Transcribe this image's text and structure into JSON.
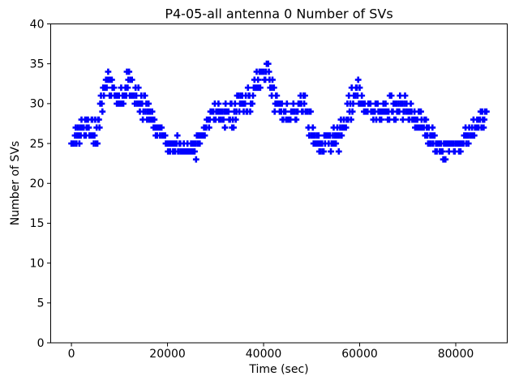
{
  "figure": {
    "background_color": "#ffffff",
    "text_color": "#000000",
    "frame_color": "#000000"
  },
  "chart_data": {
    "type": "scatter",
    "title": "P4-05-all antenna 0 Number of SVs",
    "xlabel": "Time (sec)",
    "ylabel": "Number of SVs",
    "xlim": [
      -4320,
      90720
    ],
    "ylim": [
      0,
      40
    ],
    "x_ticks": [
      0,
      20000,
      40000,
      60000,
      80000
    ],
    "y_ticks": [
      0,
      5,
      10,
      15,
      20,
      25,
      30,
      35,
      40
    ],
    "grid": false,
    "legend": null,
    "marker": "plus",
    "marker_color": "#0000ff",
    "marker_size_px": 8,
    "time_start_sec": 0,
    "time_end_sec": 86400,
    "sample_interval_sec": 150,
    "sv_min_observed": 23,
    "sv_max_observed": 35,
    "series_name": "antenna 0 number of SVs",
    "series_keypoints_t_center_spread": [
      [
        0,
        25.5,
        0.7
      ],
      [
        1200,
        26.3,
        1.0
      ],
      [
        2500,
        27.2,
        1.2
      ],
      [
        3800,
        26.8,
        1.2
      ],
      [
        4800,
        26.2,
        1.0
      ],
      [
        5800,
        28.0,
        1.3
      ],
      [
        6800,
        31.3,
        1.3
      ],
      [
        7600,
        32.5,
        1.1
      ],
      [
        8600,
        31.7,
        1.1
      ],
      [
        9600,
        30.3,
        0.8
      ],
      [
        10600,
        31.0,
        1.0
      ],
      [
        11700,
        32.6,
        1.1
      ],
      [
        12700,
        31.4,
        1.0
      ],
      [
        13800,
        30.3,
        0.9
      ],
      [
        15000,
        30.0,
        0.9
      ],
      [
        16100,
        29.0,
        1.1
      ],
      [
        17100,
        27.8,
        0.9
      ],
      [
        18100,
        26.9,
        0.8
      ],
      [
        19200,
        25.7,
        0.7
      ],
      [
        20500,
        24.9,
        0.6
      ],
      [
        22000,
        24.6,
        0.6
      ],
      [
        23500,
        24.2,
        0.8
      ],
      [
        24800,
        24.3,
        0.8
      ],
      [
        26000,
        24.8,
        0.7
      ],
      [
        27200,
        26.2,
        0.8
      ],
      [
        28400,
        27.8,
        0.8
      ],
      [
        29500,
        28.5,
        0.8
      ],
      [
        30300,
        29.2,
        1.0
      ],
      [
        31200,
        28.6,
        0.9
      ],
      [
        32500,
        28.4,
        0.9
      ],
      [
        33800,
        28.8,
        0.9
      ],
      [
        35000,
        29.3,
        1.0
      ],
      [
        36200,
        30.0,
        1.1
      ],
      [
        37400,
        30.7,
        1.2
      ],
      [
        38600,
        32.2,
        1.0
      ],
      [
        39700,
        33.4,
        0.9
      ],
      [
        40500,
        33.8,
        0.8
      ],
      [
        41400,
        32.6,
        0.9
      ],
      [
        42400,
        30.9,
        0.9
      ],
      [
        43400,
        29.7,
        0.9
      ],
      [
        44400,
        28.8,
        0.8
      ],
      [
        45500,
        28.6,
        0.8
      ],
      [
        46600,
        29.4,
        0.9
      ],
      [
        47800,
        30.0,
        0.8
      ],
      [
        48800,
        28.6,
        0.9
      ],
      [
        49800,
        26.9,
        0.9
      ],
      [
        51000,
        25.6,
        0.8
      ],
      [
        52500,
        25.2,
        0.8
      ],
      [
        54000,
        25.3,
        0.8
      ],
      [
        55500,
        25.9,
        0.8
      ],
      [
        56800,
        27.4,
        0.9
      ],
      [
        58000,
        30.0,
        1.2
      ],
      [
        59000,
        31.8,
        1.0
      ],
      [
        60000,
        30.3,
        0.9
      ],
      [
        61200,
        29.6,
        0.8
      ],
      [
        62500,
        29.2,
        0.8
      ],
      [
        64000,
        29.3,
        0.8
      ],
      [
        65500,
        29.0,
        0.8
      ],
      [
        67000,
        29.5,
        0.9
      ],
      [
        68200,
        29.8,
        0.9
      ],
      [
        69500,
        29.0,
        0.8
      ],
      [
        70800,
        28.6,
        0.8
      ],
      [
        72000,
        27.8,
        0.8
      ],
      [
        73200,
        27.0,
        0.8
      ],
      [
        74400,
        26.2,
        0.8
      ],
      [
        75600,
        25.4,
        0.7
      ],
      [
        77000,
        24.7,
        0.8
      ],
      [
        78300,
        24.2,
        0.8
      ],
      [
        79500,
        24.6,
        0.7
      ],
      [
        81000,
        25.0,
        0.6
      ],
      [
        82300,
        25.4,
        0.7
      ],
      [
        83500,
        26.2,
        0.8
      ],
      [
        84700,
        27.2,
        0.8
      ],
      [
        85800,
        28.2,
        0.8
      ],
      [
        86400,
        28.6,
        0.6
      ]
    ]
  }
}
